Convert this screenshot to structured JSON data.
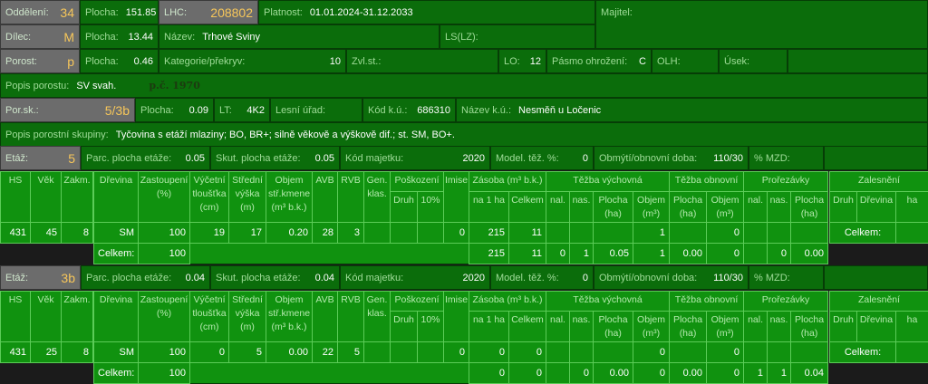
{
  "header": {
    "oddeleni": {
      "label": "Oddělení:",
      "value": "34"
    },
    "plocha_odd": {
      "label": "Plocha:",
      "value": "151.85"
    },
    "lhc": {
      "label": "LHC:",
      "value": "208802"
    },
    "platnost": {
      "label": "Platnost:",
      "value": "01.01.2024-31.12.2033"
    },
    "majitel": {
      "label": "Majitel:",
      "value": ""
    },
    "dilec": {
      "label": "Dílec:",
      "value": "M"
    },
    "plocha_dilec": {
      "label": "Plocha:",
      "value": "13.44"
    },
    "nazev": {
      "label": "Název:",
      "value": "Trhové Sviny"
    },
    "ls": {
      "label": "LS(LZ):",
      "value": ""
    },
    "porost": {
      "label": "Porost:",
      "value": "p"
    },
    "plocha_porost": {
      "label": "Plocha:",
      "value": "0.46"
    },
    "kategorie": {
      "label": "Kategorie/překryv:",
      "value": "10"
    },
    "zvl": {
      "label": "Zvl.st.:",
      "value": ""
    },
    "lo": {
      "label": "LO:",
      "value": "12"
    },
    "pasmo": {
      "label": "Pásmo ohrožení:",
      "value": "C"
    },
    "olh": {
      "label": "OLH:",
      "value": ""
    },
    "usek": {
      "label": "Úsek:",
      "value": ""
    },
    "popis_porostu": {
      "label": "Popis porostu:",
      "value": "SV svah.",
      "handwritten": "p.č. 1970"
    },
    "porsk": {
      "label": "Por.sk.:",
      "value": "5/3b"
    },
    "plocha_porsk": {
      "label": "Plocha:",
      "value": "0.09"
    },
    "lt": {
      "label": "LT:",
      "value": "4K2"
    },
    "lesni_urad": {
      "label": "Lesní úřad:",
      "value": ""
    },
    "kod_ku": {
      "label": "Kód k.ú.:",
      "value": "686310"
    },
    "nazev_ku": {
      "label": "Název k.ú.:",
      "value": "Nesměň u Ločenic"
    },
    "popis_skupiny": {
      "label": "Popis porostní skupiny:",
      "value": "Tyčovina s etáží mlaziny; BO, BR+; silně věkově a výškově dif.; st. SM, BO+."
    }
  },
  "labels": {
    "etaz": "Etáž:",
    "parc": "Parc. plocha etáže:",
    "skut": "Skut. plocha etáže:",
    "kod_majetku": "Kód majetku:",
    "model": "Model. těž. %:",
    "obmyti": "Obmýtí/obnovní doba:",
    "mzd": "% MZD:",
    "left_headers": [
      "HS",
      "Věk",
      "Zakm."
    ],
    "main_top": [
      "Dřevina",
      "Zastoupení\n(%)",
      "Výčetní\ntloušťka\n(cm)",
      "Střední\nvýška\n(m)",
      "Objem\nstř.kmene\n(m³ b.k.)",
      "AVB",
      "RVB",
      "Gen.\nklas.",
      "Poškození",
      "Imise",
      "Zásoba (m³ b.k.)",
      "Těžba výchovná",
      "Těžba obnovní",
      "Prořezávky"
    ],
    "main_sub": [
      "Druh",
      "10%",
      "na 1 ha",
      "Celkem",
      "nal.",
      "nas.",
      "Plocha\n(ha)",
      "Objem\n(m³)",
      "Plocha\n(ha)",
      "Objem\n(m³)",
      "nal.",
      "nas.",
      "Plocha\n(ha)"
    ],
    "zal_top": "Zalesnění",
    "zal_sub": [
      "Druh",
      "Dřevina",
      "ha"
    ],
    "celkem": "Celkem:"
  },
  "etaze": [
    {
      "etaz": "5",
      "parc": "0.05",
      "skut": "0.05",
      "kod_majetku": "2020",
      "model": "0",
      "obmyti": "110/30",
      "mzd": "",
      "left": [
        "431",
        "45",
        "8"
      ],
      "row": [
        "SM",
        "100",
        "19",
        "17",
        "0.20",
        "28",
        "3",
        "",
        "",
        "",
        "0",
        "215",
        "11",
        "",
        "",
        "",
        "1",
        "",
        "0",
        "",
        "",
        ""
      ],
      "total": {
        "zastoupeni": "100",
        "values": [
          "215",
          "11",
          "0",
          "1",
          "0.05",
          "1",
          "0.00",
          "0",
          "",
          "0",
          "0.00"
        ]
      },
      "zal_total": ""
    },
    {
      "etaz": "3b",
      "parc": "0.04",
      "skut": "0.04",
      "kod_majetku": "2020",
      "model": "0",
      "obmyti": "110/30",
      "mzd": "",
      "left": [
        "431",
        "25",
        "8"
      ],
      "row": [
        "SM",
        "100",
        "0",
        "5",
        "0.00",
        "22",
        "5",
        "",
        "",
        "",
        "0",
        "0",
        "0",
        "",
        "",
        "",
        "0",
        "",
        "0",
        "",
        "",
        ""
      ],
      "total": {
        "zastoupeni": "100",
        "values": [
          "0",
          "0",
          "",
          "0",
          "0.00",
          "0",
          "0.00",
          "0",
          "1",
          "1",
          "0.04"
        ]
      },
      "zal_total": ""
    }
  ],
  "colors": {
    "panel": "#0b6d0b",
    "table": "#10920f",
    "gray": "#6c6c6c",
    "accent": "#f6c65a"
  }
}
